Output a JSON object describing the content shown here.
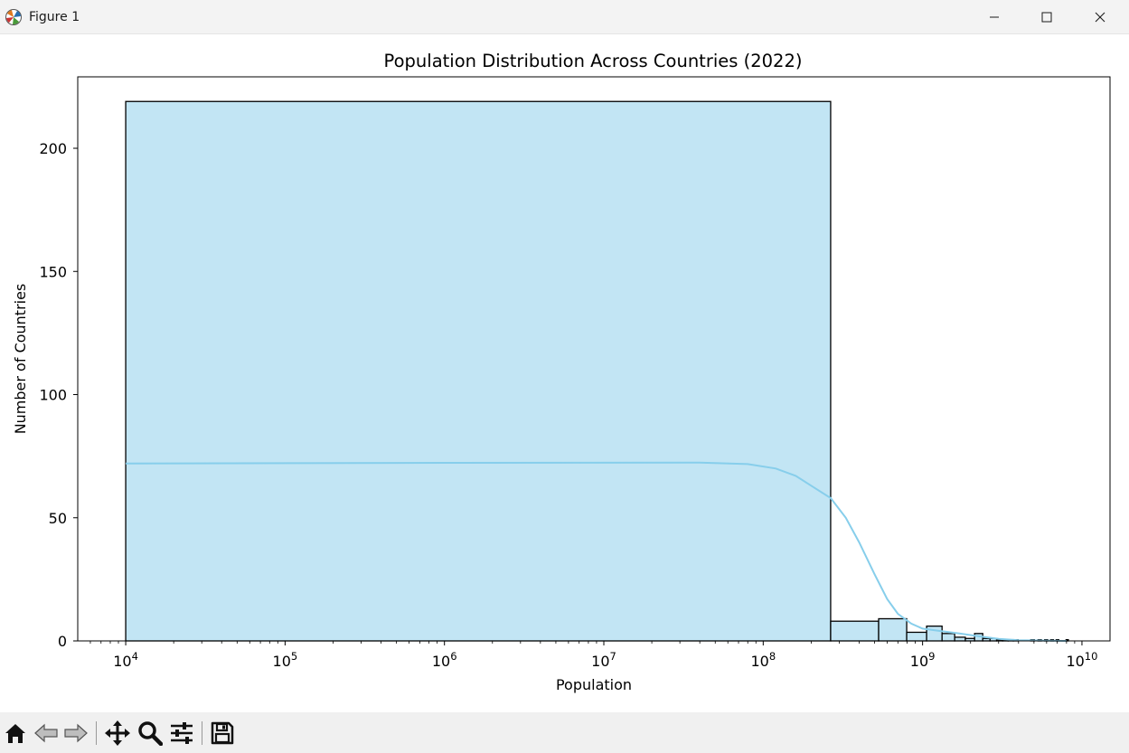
{
  "window": {
    "title": "Figure 1"
  },
  "toolbar": {
    "icons": [
      "home-icon",
      "back-icon",
      "forward-icon",
      "pan-icon",
      "zoom-icon",
      "configure-icon",
      "save-icon"
    ]
  },
  "chart_data": {
    "type": "bar",
    "subtype": "histogram",
    "title": "Population Distribution Across Countries (2022)",
    "xlabel": "Population",
    "ylabel": "Number of Countries",
    "xscale": "log",
    "xlim": [
      5000,
      15000000000
    ],
    "ylim": [
      0,
      229
    ],
    "x_ticks": [
      {
        "value": 10000,
        "base": "10",
        "exp": "4"
      },
      {
        "value": 100000,
        "base": "10",
        "exp": "5"
      },
      {
        "value": 1000000,
        "base": "10",
        "exp": "6"
      },
      {
        "value": 10000000,
        "base": "10",
        "exp": "7"
      },
      {
        "value": 100000000,
        "base": "10",
        "exp": "8"
      },
      {
        "value": 1000000000,
        "base": "10",
        "exp": "9"
      },
      {
        "value": 10000000000,
        "base": "10",
        "exp": "10"
      }
    ],
    "y_ticks": [
      0,
      50,
      100,
      150,
      200
    ],
    "bar_color": "#c2e5f4",
    "edge_color": "#000000",
    "kde_color": "#87ceeb",
    "bins": [
      {
        "x0": 10000,
        "x1": 265000000,
        "count": 219
      },
      {
        "x0": 265000000,
        "x1": 530000000,
        "count": 8
      },
      {
        "x0": 530000000,
        "x1": 795000000,
        "count": 9
      },
      {
        "x0": 795000000,
        "x1": 1060000000,
        "count": 3.5
      },
      {
        "x0": 1060000000,
        "x1": 1325000000,
        "count": 6
      },
      {
        "x0": 1325000000,
        "x1": 1590000000,
        "count": 3
      },
      {
        "x0": 1590000000,
        "x1": 1855000000,
        "count": 1.5
      },
      {
        "x0": 1855000000,
        "x1": 2120000000,
        "count": 1
      },
      {
        "x0": 2120000000,
        "x1": 2385000000,
        "count": 3
      },
      {
        "x0": 2385000000,
        "x1": 2650000000,
        "count": 1
      },
      {
        "x0": 2650000000,
        "x1": 2915000000,
        "count": 1
      },
      {
        "x0": 2915000000,
        "x1": 3180000000,
        "count": 0.5
      },
      {
        "x0": 3180000000,
        "x1": 3445000000,
        "count": 0.5
      },
      {
        "x0": 3445000000,
        "x1": 3710000000,
        "count": 0.5
      },
      {
        "x0": 3710000000,
        "x1": 3975000000,
        "count": 0.5
      },
      {
        "x0": 4770000000,
        "x1": 5035000000,
        "count": 0.5
      },
      {
        "x0": 5300000000,
        "x1": 5565000000,
        "count": 0.5
      },
      {
        "x0": 5830000000,
        "x1": 6095000000,
        "count": 0.5
      },
      {
        "x0": 6360000000,
        "x1": 6625000000,
        "count": 0.5
      },
      {
        "x0": 6890000000,
        "x1": 7155000000,
        "count": 0.5
      },
      {
        "x0": 7950000000,
        "x1": 8215000000,
        "count": 0.5
      }
    ],
    "kde": [
      [
        10000,
        72
      ],
      [
        1000000,
        72.3
      ],
      [
        40000000,
        72.4
      ],
      [
        80000000,
        71.8
      ],
      [
        120000000,
        70
      ],
      [
        160000000,
        67
      ],
      [
        200000000,
        63
      ],
      [
        265000000,
        58
      ],
      [
        330000000,
        50
      ],
      [
        400000000,
        40
      ],
      [
        500000000,
        27
      ],
      [
        600000000,
        17
      ],
      [
        700000000,
        11
      ],
      [
        850000000,
        7
      ],
      [
        1000000000,
        5
      ],
      [
        1300000000,
        4
      ],
      [
        1700000000,
        3
      ],
      [
        2200000000,
        2
      ],
      [
        3000000000,
        0.8
      ],
      [
        4000000000,
        0.3
      ],
      [
        8000000000,
        0
      ]
    ]
  }
}
